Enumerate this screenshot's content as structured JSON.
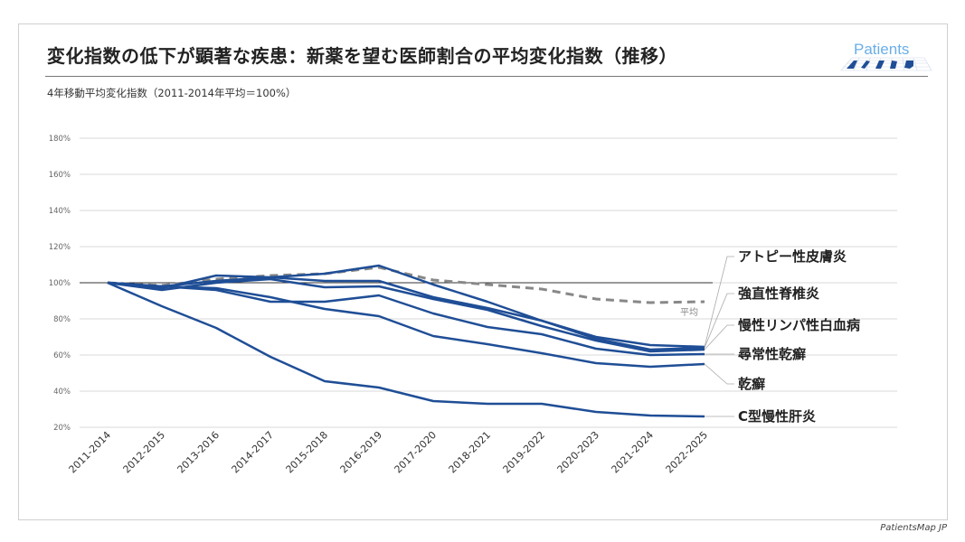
{
  "title": "変化指数の低下が顕著な疾患：新薬を望む医師割合の平均変化指数（推移）",
  "logo_text": "PatientsMAP",
  "footer": "PatientsMap JP",
  "colors": {
    "series": "#1f4e96",
    "average": "#888888",
    "grid": "#d9d9d9",
    "baseline": "#333333"
  },
  "chart_data": {
    "type": "line",
    "title": "変化指数の低下が顕著な疾患：新薬を望む医師割合の平均変化指数（推移）",
    "ylabel": "4年移動平均変化指数（2011-2014年平均＝100%）",
    "xlabel": "",
    "ylim": [
      20,
      180
    ],
    "yticks": [
      "20%",
      "40%",
      "60%",
      "80%",
      "100%",
      "120%",
      "140%",
      "160%",
      "180%"
    ],
    "ytick_values": [
      20,
      40,
      60,
      80,
      100,
      120,
      140,
      160,
      180
    ],
    "grid": true,
    "baseline": 100,
    "categories": [
      "2011-2014",
      "2012-2015",
      "2013-2016",
      "2014-2017",
      "2015-2018",
      "2016-2019",
      "2017-2020",
      "2018-2021",
      "2019-2022",
      "2020-2023",
      "2021-2024",
      "2022-2025"
    ],
    "series": [
      {
        "name": "アトピー性皮膚炎",
        "values": [
          100,
          98,
          101,
          103,
          105,
          109.5,
          99,
          89.5,
          79,
          70,
          65.5,
          64.5
        ]
      },
      {
        "name": "強直性脊椎炎",
        "values": [
          100,
          97,
          104,
          103,
          101,
          101,
          92,
          86,
          79,
          69,
          63,
          64
        ]
      },
      {
        "name": "慢性リンパ性白血病",
        "values": [
          100,
          96,
          100,
          102,
          97.5,
          98,
          91,
          85,
          76,
          68,
          62,
          63
        ]
      },
      {
        "name": "尋常性乾癬",
        "values": [
          100,
          98,
          96,
          89.5,
          89.5,
          93,
          83,
          75.5,
          71.5,
          63.5,
          60,
          60.5
        ]
      },
      {
        "name": "乾癬",
        "values": [
          100,
          98,
          97,
          92,
          85.5,
          81.5,
          70.5,
          66,
          61,
          55.5,
          53.5,
          55
        ]
      },
      {
        "name": "C型慢性肝炎",
        "values": [
          100,
          87,
          75,
          59,
          45.5,
          42,
          34.5,
          33,
          33,
          28.5,
          26.5,
          26
        ]
      }
    ],
    "average": {
      "name": "平均",
      "values": [
        100,
        98.5,
        102,
        104,
        105,
        108.5,
        101.5,
        99,
        96.5,
        91,
        89,
        89.5
      ]
    },
    "legend": "right (direct labels)"
  }
}
